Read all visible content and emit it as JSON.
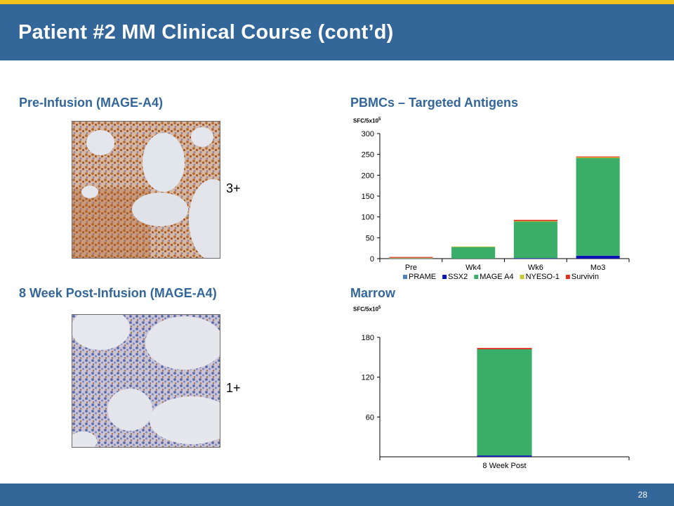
{
  "slide": {
    "title": "Patient #2 MM Clinical Course (cont’d)",
    "page_number": "28"
  },
  "panels": {
    "pre_infusion": {
      "heading": "Pre-Infusion (MAGE-A4)",
      "score": "3+"
    },
    "post_infusion": {
      "heading": "8 Week Post-Infusion (MAGE-A4)",
      "score": "1+"
    },
    "pbmc_heading": "PBMCs – Targeted Antigens",
    "marrow_heading": "Marrow"
  },
  "unit_label": {
    "base": "SFC/5x10",
    "exponent": "5"
  },
  "colors": {
    "header": "#336699",
    "accent": "#f2c31a",
    "PRAME": "#4f81bd",
    "SSX2": "#0a14b4",
    "MAGE A4": "#3aae69",
    "NYESO-1": "#c8c832",
    "Survivin": "#e03020"
  },
  "chart_data": [
    {
      "type": "bar",
      "stacked": true,
      "title": "PBMCs – Targeted Antigens",
      "ylabel": "SFC/5x10^5",
      "categories": [
        "Pre",
        "Wk4",
        "Wk6",
        "Mo3"
      ],
      "series": [
        {
          "name": "PRAME",
          "values": [
            1,
            0,
            0,
            0
          ]
        },
        {
          "name": "SSX2",
          "values": [
            0,
            0,
            1,
            7
          ]
        },
        {
          "name": "MAGE A4",
          "values": [
            0,
            28,
            88,
            234
          ]
        },
        {
          "name": "NYESO-1",
          "values": [
            1,
            1,
            1,
            2
          ]
        },
        {
          "name": "Survivin",
          "values": [
            2,
            0,
            3,
            2
          ]
        }
      ],
      "ylim": [
        0,
        300
      ],
      "yticks": [
        "0",
        "50",
        "100",
        "150",
        "200",
        "250",
        "300"
      ],
      "legend_position": "bottom"
    },
    {
      "type": "bar",
      "stacked": true,
      "title": "Marrow",
      "ylabel": "SFC/5x10^5",
      "categories": [
        "8 Week Post"
      ],
      "series": [
        {
          "name": "PRAME",
          "values": [
            0
          ]
        },
        {
          "name": "SSX2",
          "values": [
            2
          ]
        },
        {
          "name": "MAGE A4",
          "values": [
            160
          ]
        },
        {
          "name": "NYESO-1",
          "values": [
            0
          ]
        },
        {
          "name": "Survivin",
          "values": [
            2
          ]
        }
      ],
      "ylim": [
        0,
        180
      ],
      "yticks": [
        "60",
        "120",
        "180"
      ]
    }
  ]
}
